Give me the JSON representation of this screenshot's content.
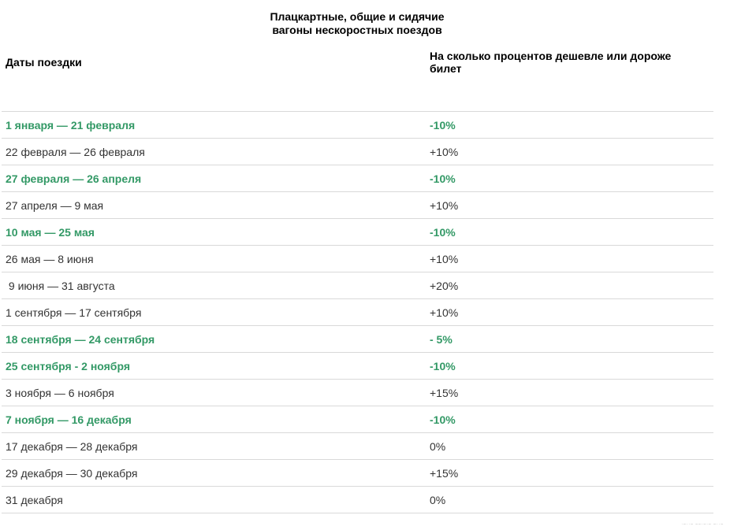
{
  "title": {
    "line1": "Плацкартные, общие и сидячие",
    "line2": "вагоны нескоростных поездов"
  },
  "table": {
    "headers": {
      "dates": "Даты поездки",
      "percent": "На сколько процентов дешевле или дороже билет"
    },
    "rows": [
      {
        "dates": "1 января — 21 февраля",
        "percent": "-10%",
        "highlight": true
      },
      {
        "dates": "22 февраля — 26 февраля",
        "percent": "+10%",
        "highlight": false
      },
      {
        "dates": "27 февраля — 26 апреля",
        "percent": "-10%",
        "highlight": true
      },
      {
        "dates": "27 апреля — 9 мая",
        "percent": "+10%",
        "highlight": false
      },
      {
        "dates": "10 мая — 25 мая",
        "percent": "-10%",
        "highlight": true
      },
      {
        "dates": "26 мая — 8 июня",
        "percent": "+10%",
        "highlight": false
      },
      {
        "dates": " 9 июня — 31 августа",
        "percent": "+20%",
        "highlight": false
      },
      {
        "dates": "1 сентября — 17 сентября",
        "percent": "+10%",
        "highlight": false
      },
      {
        "dates": "18 сентября — 24 сентября",
        "percent": "- 5%",
        "highlight": true
      },
      {
        "dates": "25 сентября - 2 ноября",
        "percent": "-10%",
        "highlight": true
      },
      {
        "dates": "3 ноября — 6 ноября",
        "percent": "+15%",
        "highlight": false
      },
      {
        "dates": "7 ноября — 16 декабря",
        "percent": "-10%",
        "highlight": true
      },
      {
        "dates": "17 декабря — 28 декабря",
        "percent": "0%",
        "highlight": false
      },
      {
        "dates": "29 декабря — 30 декабря",
        "percent": "+15%",
        "highlight": false
      },
      {
        "dates": "31 декабря",
        "percent": "0%",
        "highlight": false
      }
    ]
  },
  "colors": {
    "accent_green": "#339966",
    "body_text": "#333333",
    "border": "#d9d9d9"
  },
  "watermark": "·–··– ––·–·– –··–"
}
